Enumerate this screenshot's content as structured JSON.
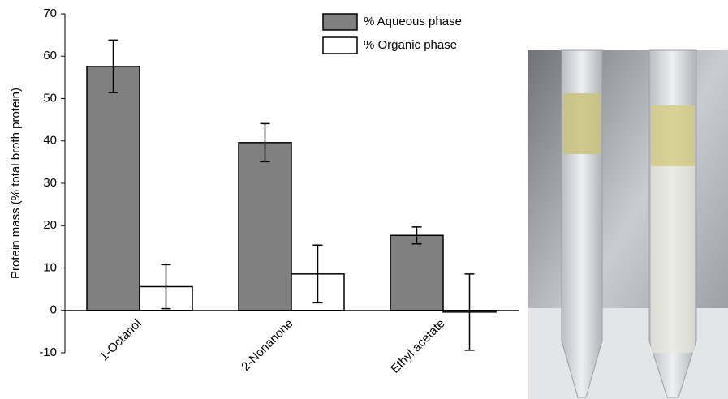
{
  "chart_data": {
    "type": "bar",
    "ylabel": "Protein mass (% total broth protein)",
    "categories": [
      "1-Octanol",
      "2-Nonanone",
      "Ethyl acetate"
    ],
    "series": [
      {
        "name": "% Aqueous phase",
        "color": "#808080",
        "values": [
          57.6,
          39.6,
          17.7
        ],
        "errors": [
          6.2,
          4.5,
          2.0
        ]
      },
      {
        "name": "% Organic phase",
        "color": "#ffffff",
        "values": [
          5.6,
          8.6,
          -0.4
        ],
        "errors": [
          5.2,
          6.8,
          9.0
        ]
      }
    ],
    "ylim": [
      -10,
      70
    ],
    "yticks": [
      -10,
      0,
      10,
      20,
      30,
      40,
      50,
      60,
      70
    ],
    "grid": false
  }
}
